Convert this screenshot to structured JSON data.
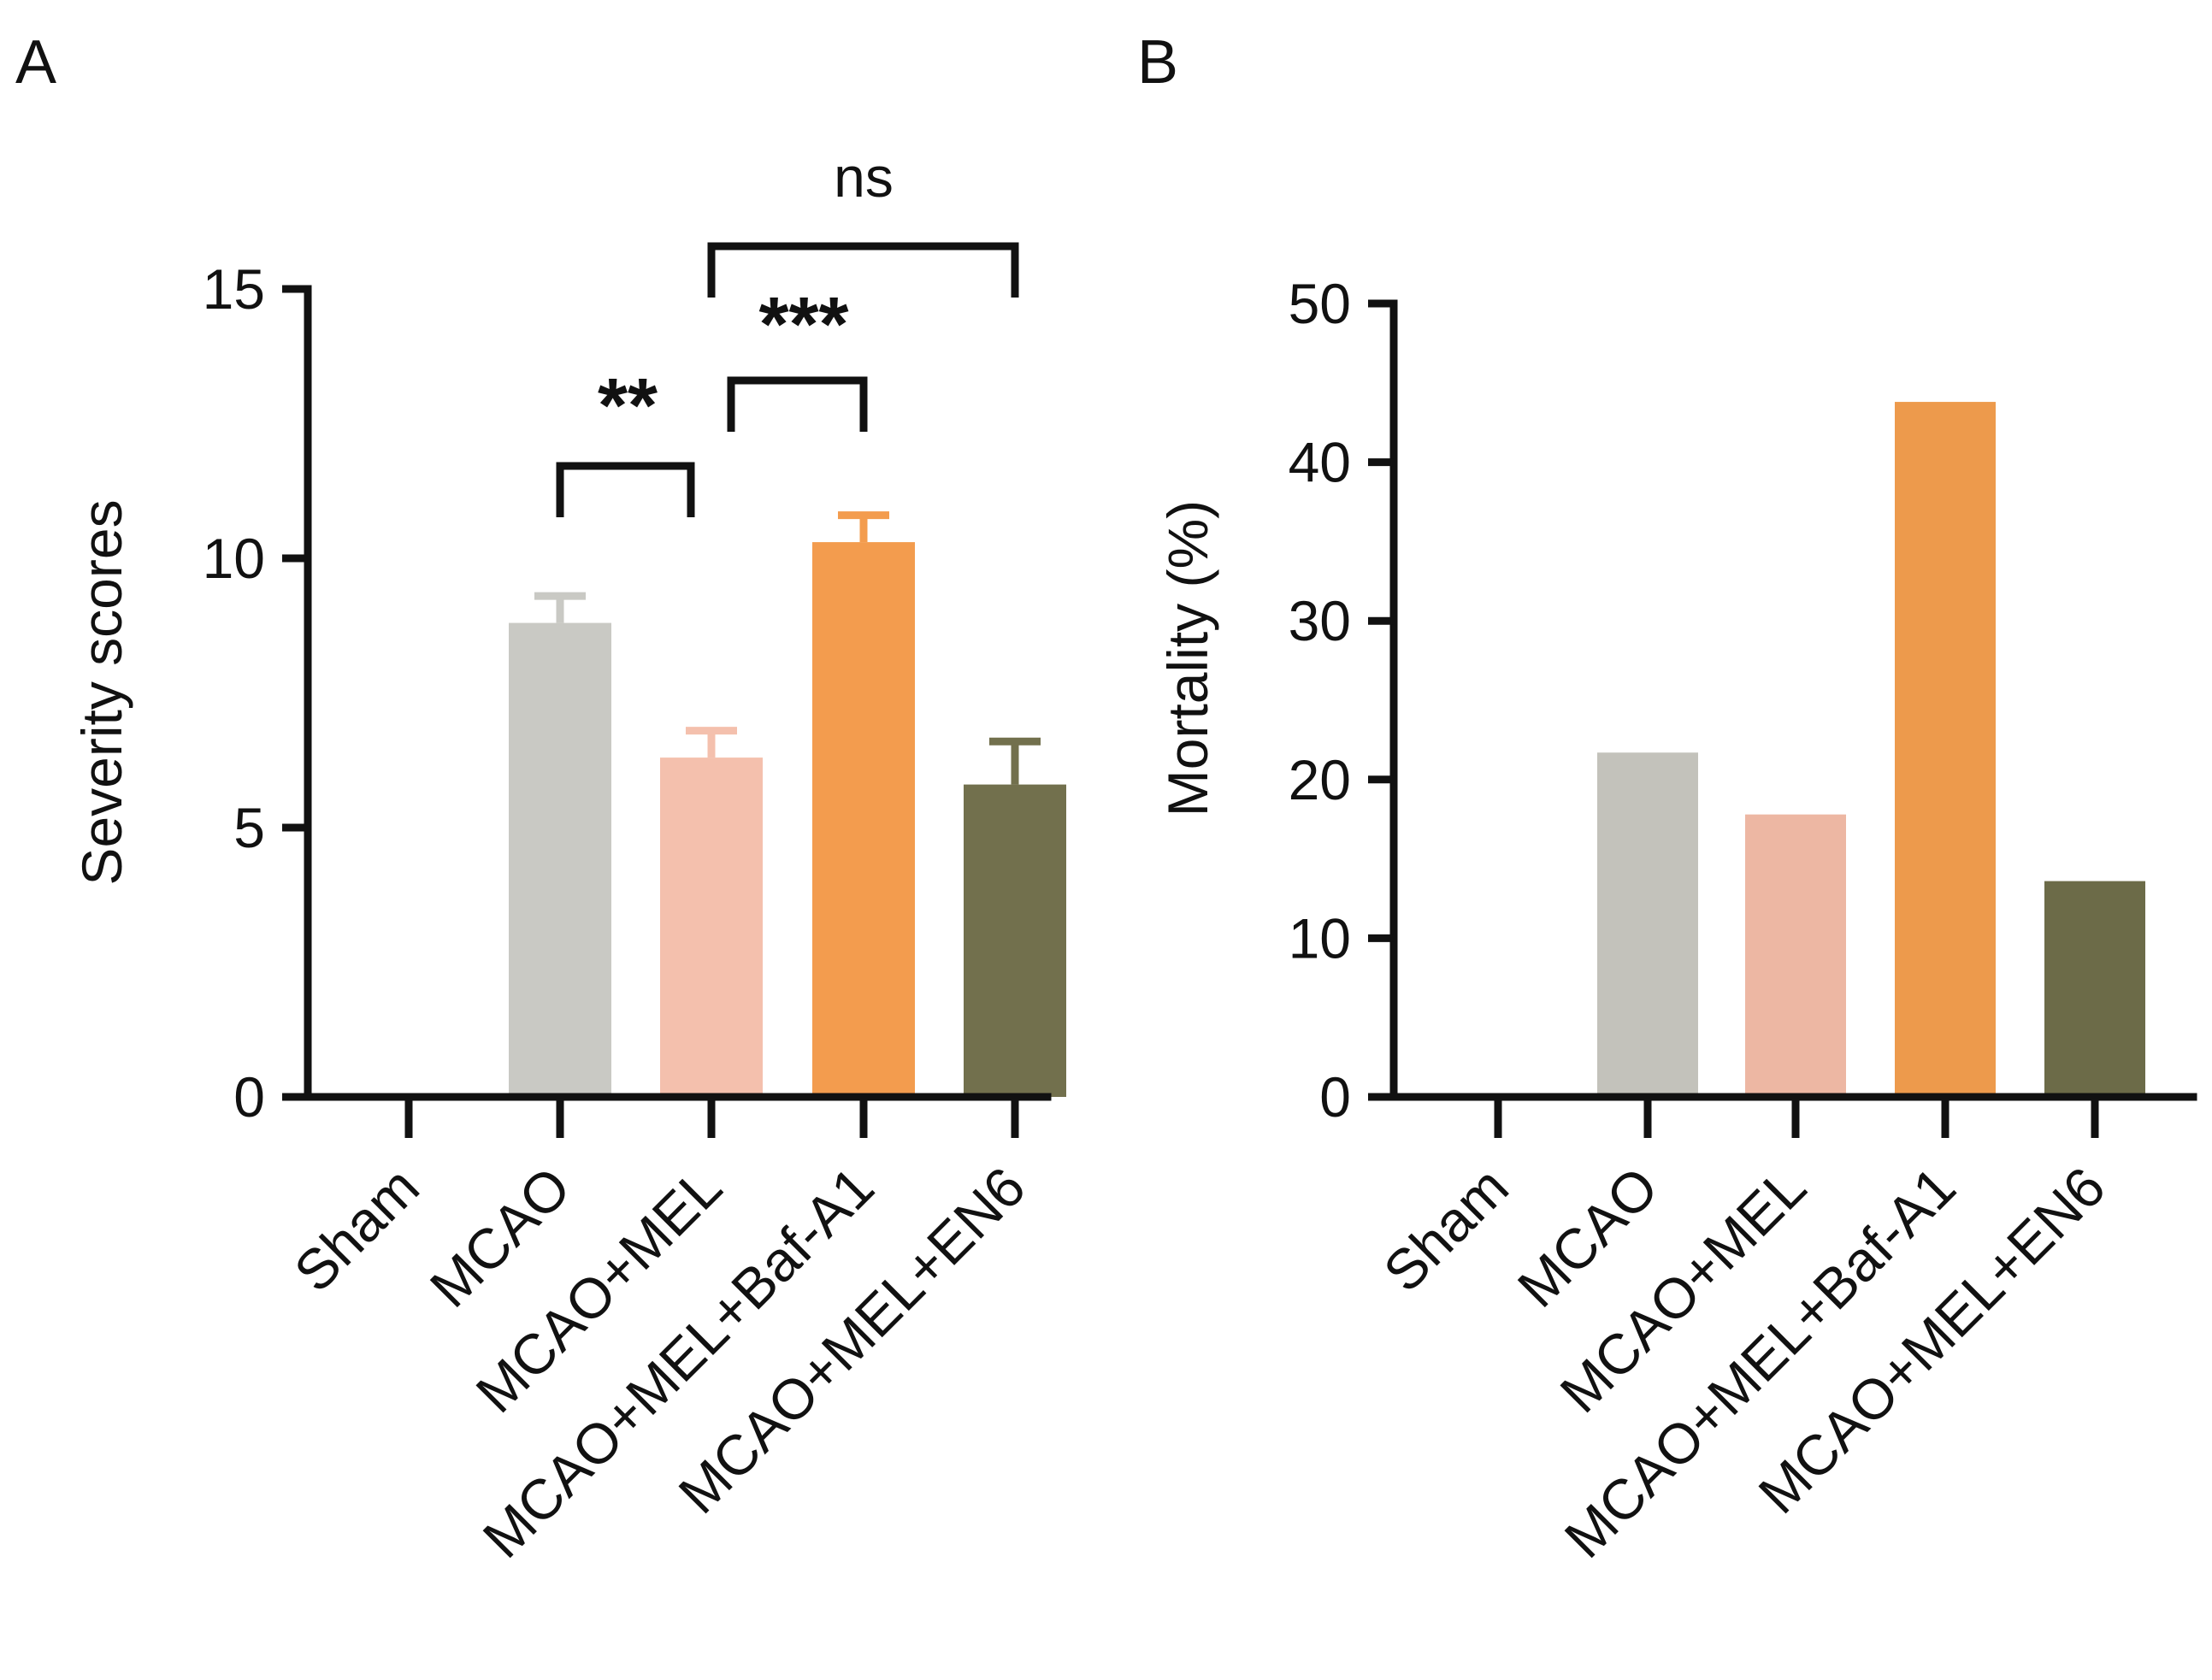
{
  "chart_data": [
    {
      "panel": "A",
      "type": "bar",
      "title": "",
      "xlabel": "",
      "ylabel": "Severity scores",
      "ylim": [
        0,
        15
      ],
      "yticks": [
        0,
        5,
        10,
        15
      ],
      "categories": [
        "Sham",
        "MCAO",
        "MCAO+MEL",
        "MCAO+MEL+Baf-A1",
        "MCAO+MEL+EN6"
      ],
      "values": [
        0,
        8.8,
        6.3,
        10.3,
        5.8
      ],
      "errors": [
        0,
        0.5,
        0.5,
        0.5,
        0.8
      ],
      "colors": [
        "#c9c9c4",
        "#c9c9c4",
        "#f4c0ad",
        "#f39c4e",
        "#72704d"
      ],
      "error_colors": [
        "#c9c9c4",
        "#c9c9c4",
        "#f4c0ad",
        "#f39c4e",
        "#72704d"
      ],
      "grid": false,
      "comparisons": [
        {
          "from": 1,
          "to": 2,
          "label": "**"
        },
        {
          "from": 2,
          "to": 3,
          "label": "***"
        },
        {
          "from": 2,
          "to": 4,
          "label": "ns"
        }
      ]
    },
    {
      "panel": "B",
      "type": "bar",
      "title": "",
      "xlabel": "",
      "ylabel": "Mortality (%)",
      "ylim": [
        0,
        50
      ],
      "yticks": [
        0,
        10,
        20,
        30,
        40,
        50
      ],
      "categories": [
        "Sham",
        "MCAO",
        "MCAO+MEL",
        "MCAO+MEL+Baf-A1",
        "MCAO+MEL+EN6"
      ],
      "values": [
        0,
        21.7,
        17.8,
        43.8,
        13.6
      ],
      "colors": [
        "#c3c2bb",
        "#c3c2bb",
        "#edb7a3",
        "#ed9a4c",
        "#6c6b48"
      ],
      "grid": false
    }
  ]
}
